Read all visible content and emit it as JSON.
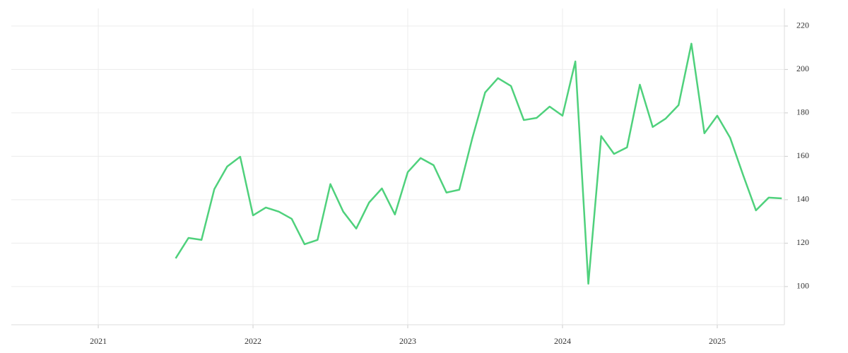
{
  "chart_data": {
    "type": "line",
    "x": [
      2021.5,
      2021.583,
      2021.667,
      2021.75,
      2021.833,
      2021.917,
      2022.0,
      2022.083,
      2022.167,
      2022.25,
      2022.333,
      2022.417,
      2022.5,
      2022.583,
      2022.667,
      2022.75,
      2022.833,
      2022.917,
      2023.0,
      2023.083,
      2023.167,
      2023.25,
      2023.333,
      2023.417,
      2023.5,
      2023.583,
      2023.667,
      2023.75,
      2023.833,
      2023.917,
      2024.0,
      2024.083,
      2024.167,
      2024.25,
      2024.333,
      2024.417,
      2024.5,
      2024.583,
      2024.667,
      2024.75,
      2024.833,
      2024.917,
      2025.0,
      2025.083,
      2025.167,
      2025.25,
      2025.333,
      2025.417
    ],
    "series": [
      {
        "color": "#4fd17c",
        "values": [
          113,
          122.4,
          121.5,
          144.9,
          155.3,
          159.8,
          132.8,
          136.4,
          134.5,
          131.2,
          119.5,
          121.5,
          147.2,
          134.5,
          126.7,
          138.7,
          145.2,
          133.2,
          152.7,
          159.2,
          155.9,
          143.3,
          144.6,
          168.3,
          189.4,
          196.0,
          192.4,
          176.7,
          177.7,
          182.9,
          178.7,
          203.7,
          101.3,
          169.3,
          161.1,
          164.1,
          193.0,
          173.5,
          177.4,
          183.6,
          211.9,
          170.6,
          178.7,
          168.6,
          151.4,
          135.1,
          141.0,
          140.6
        ]
      }
    ],
    "xlim": [
      2020.438,
      2025.434
    ],
    "xticks": [
      2021,
      2022,
      2023,
      2024,
      2025
    ],
    "ylim": [
      82.4,
      228.1
    ],
    "yticks": [
      100,
      120,
      140,
      160,
      180,
      200,
      220
    ],
    "grid": true
  }
}
